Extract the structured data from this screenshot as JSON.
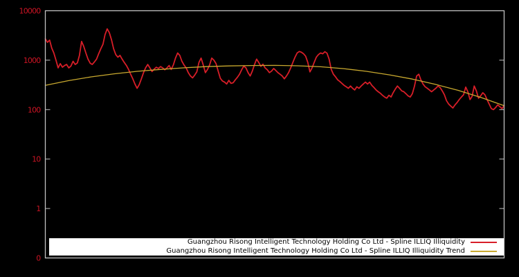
{
  "chart": {
    "background_color": "#000000",
    "plot_border_color": "#c2c2c2",
    "axis_label_color": "#cc1424",
    "legend": {
      "background": "#ffffff",
      "text_color": "#000000",
      "items": [
        {
          "label": "Guangzhou Risong Intelligent Technology Holding Co Ltd - Spline ILLIQ Illiquidity",
          "color": "#d81e28"
        },
        {
          "label": "Guangzhou Risong Intelligent Technology Holding Co Ltd - Spline ILLIQ Illiquidity Trend",
          "color": "#c9a92f"
        }
      ]
    }
  },
  "chart_data": {
    "type": "line",
    "title": "",
    "xlabel": "",
    "ylabel": "",
    "x_axis_note": "time axis shown without tick labels",
    "y_scale": "log",
    "ylim": [
      0.1,
      10000
    ],
    "y_ticks": [
      {
        "label": "10000",
        "value": 10000
      },
      {
        "label": "1000",
        "value": 1000
      },
      {
        "label": "100",
        "value": 100
      },
      {
        "label": "10",
        "value": 10
      },
      {
        "label": "1",
        "value": 1
      },
      {
        "label": "0",
        "value": 0.1
      }
    ],
    "grid": false,
    "legend_position": "bottom",
    "series": [
      {
        "name": "Guangzhou Risong Intelligent Technology Holding Co Ltd - Spline ILLIQ Illiquidity",
        "color": "#d81e28",
        "width": 1.8,
        "values": [
          2700,
          2300,
          2550,
          1750,
          1400,
          1000,
          700,
          850,
          720,
          780,
          820,
          700,
          760,
          950,
          820,
          880,
          1250,
          2400,
          1900,
          1400,
          1050,
          870,
          820,
          920,
          1050,
          1350,
          1700,
          2100,
          3300,
          4300,
          3600,
          2600,
          1700,
          1300,
          1150,
          1250,
          1050,
          900,
          780,
          650,
          520,
          420,
          330,
          270,
          320,
          420,
          560,
          700,
          820,
          700,
          590,
          660,
          720,
          680,
          740,
          700,
          640,
          700,
          780,
          650,
          800,
          1100,
          1400,
          1250,
          950,
          800,
          700,
          560,
          480,
          440,
          500,
          580,
          900,
          1100,
          800,
          560,
          650,
          800,
          1100,
          1000,
          850,
          600,
          430,
          380,
          360,
          330,
          390,
          340,
          350,
          400,
          450,
          520,
          640,
          760,
          700,
          560,
          480,
          600,
          810,
          1050,
          900,
          750,
          830,
          700,
          640,
          560,
          600,
          680,
          620,
          560,
          520,
          480,
          420,
          480,
          560,
          700,
          900,
          1150,
          1400,
          1500,
          1450,
          1350,
          1200,
          900,
          580,
          700,
          900,
          1150,
          1300,
          1400,
          1350,
          1480,
          1380,
          1050,
          650,
          520,
          460,
          400,
          370,
          340,
          310,
          290,
          270,
          300,
          270,
          250,
          290,
          270,
          300,
          330,
          360,
          330,
          360,
          310,
          280,
          250,
          230,
          215,
          195,
          180,
          170,
          195,
          180,
          220,
          260,
          300,
          270,
          240,
          230,
          210,
          190,
          180,
          210,
          300,
          480,
          520,
          400,
          330,
          290,
          270,
          250,
          230,
          250,
          270,
          300,
          280,
          240,
          200,
          152,
          130,
          118,
          108,
          125,
          140,
          160,
          180,
          200,
          285,
          230,
          160,
          185,
          300,
          240,
          170,
          190,
          220,
          200,
          160,
          130,
          105,
          100,
          110,
          125,
          115,
          105,
          120
        ]
      },
      {
        "name": "Guangzhou Risong Intelligent Technology Holding Co Ltd - Spline ILLIQ Illiquidity Trend",
        "color": "#c9a92f",
        "width": 1.3,
        "values": [
          310,
          385,
          460,
          530,
          595,
          650,
          700,
          740,
          765,
          780,
          785,
          770,
          735,
          675,
          595,
          505,
          415,
          325,
          245,
          175,
          120
        ]
      }
    ]
  }
}
